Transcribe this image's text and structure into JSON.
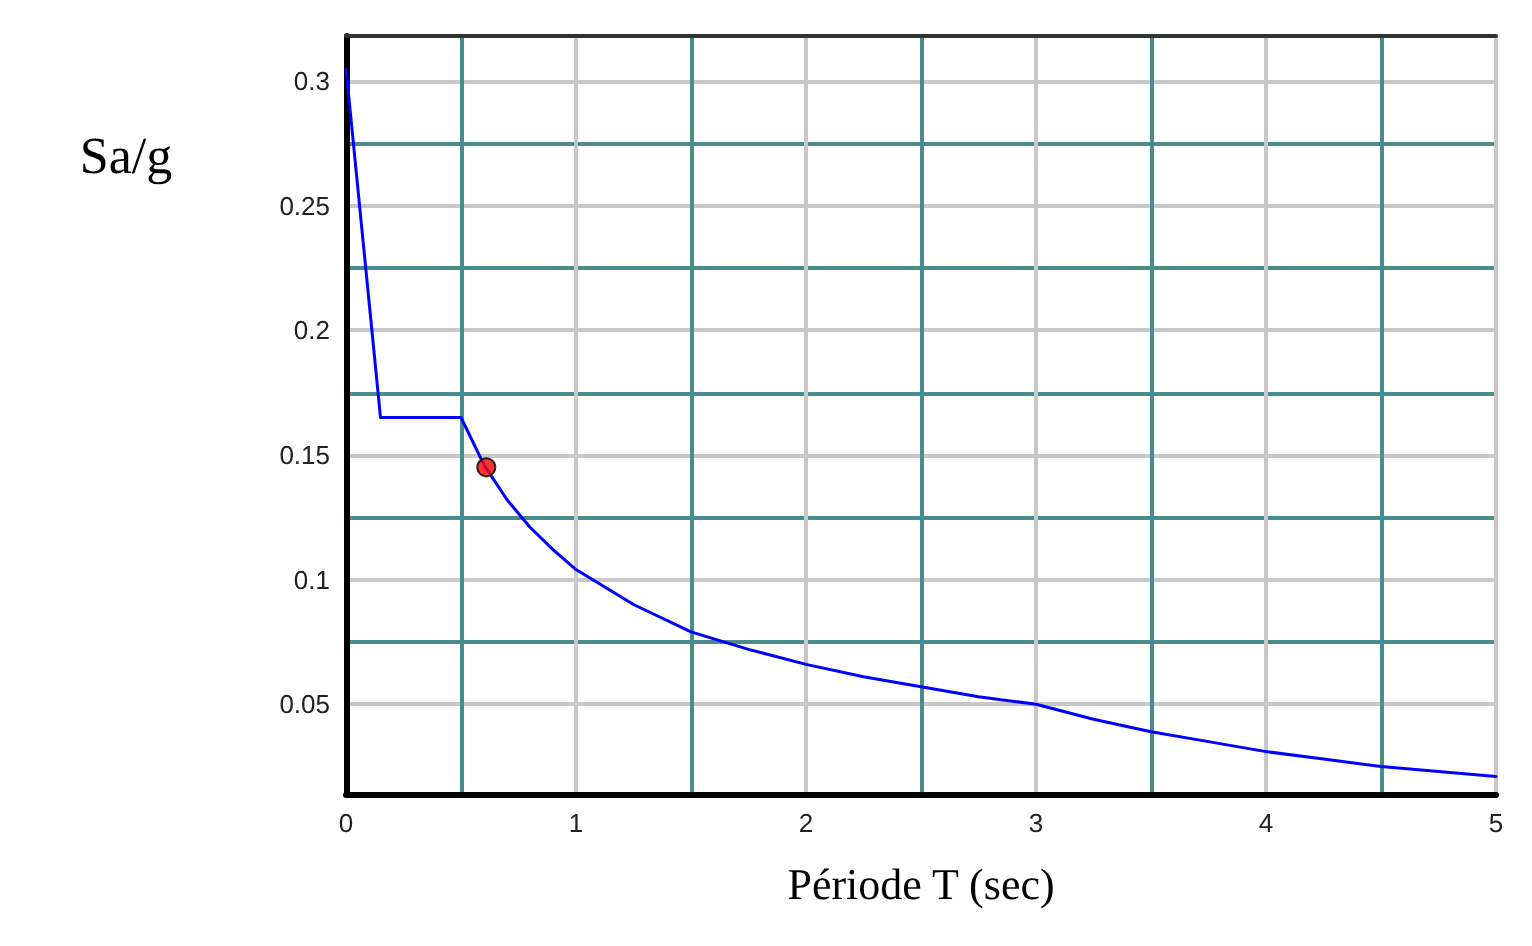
{
  "chart_data": {
    "type": "line",
    "xlabel": "Période T (sec)",
    "ylabel": "Sa/g",
    "xlim": [
      0,
      5
    ],
    "ylim": [
      0.014,
      0.318
    ],
    "xticks": [
      0,
      {
        "value": 0.5,
        "label": null
      },
      1,
      {
        "value": 1.5,
        "label": null
      },
      2,
      {
        "value": 2.5,
        "label": null
      },
      3,
      {
        "value": 3.5,
        "label": null
      },
      4,
      {
        "value": 4.5,
        "label": null
      },
      5
    ],
    "yticks": [
      0.05,
      {
        "value": 0.075,
        "label": null
      },
      0.1,
      {
        "value": 0.125,
        "label": null
      },
      0.15,
      {
        "value": 0.175,
        "label": null
      },
      0.2,
      {
        "value": 0.225,
        "label": null
      },
      0.25,
      {
        "value": 0.275,
        "label": null
      },
      0.3
    ],
    "grid": true,
    "line_style": "solid",
    "series": [
      {
        "color": "#0000ff",
        "marker": "none",
        "x": [
          0,
          0.15,
          0.5,
          0.6,
          0.7,
          0.8,
          0.9,
          1.0,
          1.25,
          1.5,
          1.75,
          2,
          2.25,
          2.5,
          2.75,
          3,
          3.25,
          3.5,
          3.75,
          4,
          4.25,
          4.5,
          4.75,
          5
        ],
        "values": [
          0.305,
          0.165,
          0.165,
          0.146,
          0.132,
          0.121,
          0.112,
          0.104,
          0.09,
          0.079,
          0.072,
          0.066,
          0.061,
          0.057,
          0.053,
          0.05,
          0.044,
          0.039,
          0.035,
          0.031,
          0.028,
          0.025,
          0.023,
          0.021
        ]
      },
      {
        "type": "scatter",
        "color": "#ff0000",
        "marker": "circle",
        "x": [
          0.61
        ],
        "values": [
          0.145
        ]
      }
    ]
  }
}
